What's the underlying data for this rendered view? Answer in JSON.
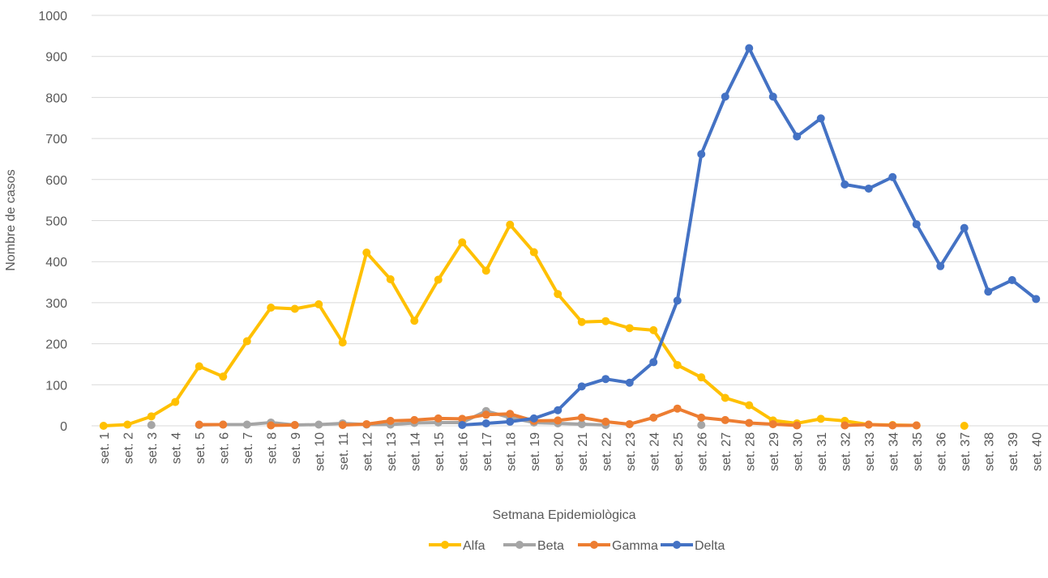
{
  "chart_data": {
    "type": "line",
    "x_label": "Setmana Epidemiològica",
    "y_label": "Nombre de casos",
    "categories": [
      "set. 1",
      "set. 2",
      "set. 3",
      "set. 4",
      "set. 5",
      "set. 6",
      "set. 7",
      "set. 8",
      "set. 9",
      "set. 10",
      "set. 11",
      "set. 12",
      "set. 13",
      "set. 14",
      "set. 15",
      "set. 16",
      "set. 17",
      "set. 18",
      "set. 19",
      "set. 20",
      "set. 21",
      "set. 22",
      "set. 23",
      "set. 24",
      "set. 25",
      "set. 26",
      "set. 27",
      "set. 28",
      "set. 29",
      "set. 30",
      "set. 31",
      "set. 32",
      "set. 33",
      "set. 34",
      "set. 35",
      "set. 36",
      "set. 37",
      "set. 38",
      "set. 39",
      "set. 40"
    ],
    "series": [
      {
        "name": "Alfa",
        "color": "#ffc000",
        "values": [
          0,
          3,
          23,
          58,
          145,
          120,
          206,
          288,
          285,
          296,
          203,
          422,
          357,
          256,
          356,
          447,
          378,
          490,
          423,
          321,
          253,
          255,
          238,
          233,
          148,
          118,
          68,
          50,
          13,
          6,
          17,
          12,
          3,
          2,
          1,
          null,
          0,
          null,
          null,
          null
        ]
      },
      {
        "name": "Beta",
        "color": "#a5a5a5",
        "values": [
          null,
          null,
          2,
          null,
          2,
          3,
          3,
          8,
          2,
          3,
          6,
          3,
          3,
          7,
          8,
          8,
          36,
          20,
          8,
          6,
          4,
          2,
          null,
          null,
          null,
          2,
          null,
          null,
          null,
          null,
          null,
          null,
          null,
          null,
          null,
          null,
          null,
          null,
          null,
          null
        ]
      },
      {
        "name": "Gamma",
        "color": "#ed7d31",
        "values": [
          null,
          null,
          null,
          null,
          3,
          3,
          null,
          1,
          2,
          null,
          2,
          4,
          12,
          14,
          18,
          17,
          27,
          29,
          12,
          13,
          20,
          10,
          4,
          20,
          42,
          20,
          14,
          7,
          4,
          1,
          null,
          1,
          3,
          1,
          1,
          null,
          null,
          null,
          null,
          null
        ]
      },
      {
        "name": "Delta",
        "color": "#4472c4",
        "values": [
          null,
          null,
          null,
          null,
          null,
          null,
          null,
          null,
          null,
          null,
          null,
          null,
          null,
          null,
          null,
          2,
          6,
          10,
          18,
          38,
          96,
          114,
          105,
          155,
          305,
          662,
          802,
          920,
          802,
          705,
          749,
          588,
          578,
          606,
          491,
          389,
          482,
          327,
          355,
          309
        ]
      }
    ],
    "ylim": [
      0,
      1000
    ],
    "yticks": [
      0,
      100,
      200,
      300,
      400,
      500,
      600,
      700,
      800,
      900,
      1000
    ],
    "grid": true,
    "legend": "bottom"
  }
}
